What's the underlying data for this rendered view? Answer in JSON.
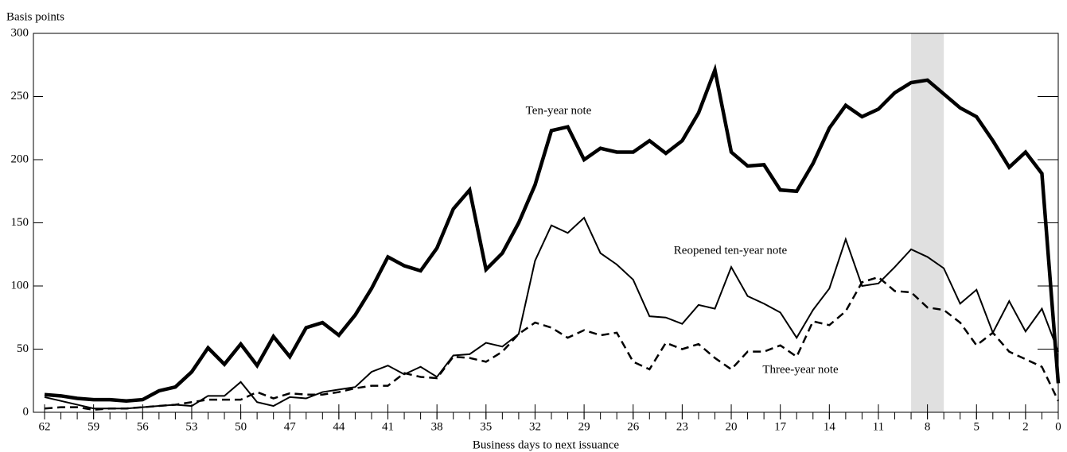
{
  "chart_data": {
    "type": "line",
    "ylabel": "Basis points",
    "xlabel": "Business days to next issuance",
    "x": [
      62,
      61,
      60,
      59,
      58,
      57,
      56,
      55,
      54,
      53,
      52,
      51,
      50,
      49,
      48,
      47,
      46,
      45,
      44,
      43,
      42,
      41,
      40,
      39,
      38,
      37,
      36,
      35,
      34,
      33,
      32,
      31,
      30,
      29,
      28,
      27,
      26,
      25,
      24,
      23,
      22,
      21,
      20,
      19,
      18,
      17,
      16,
      15,
      14,
      13,
      12,
      11,
      10,
      9,
      8,
      7,
      6,
      5,
      4,
      3,
      2,
      1,
      0
    ],
    "series": [
      {
        "name": "Ten-year note",
        "color": "#000000",
        "style": "thick",
        "values": [
          14,
          13,
          11,
          10,
          10,
          9,
          10,
          17,
          20,
          32,
          51,
          38,
          54,
          37,
          60,
          44,
          67,
          71,
          61,
          77,
          98,
          123,
          116,
          112,
          130,
          161,
          176,
          113,
          126,
          150,
          180,
          223,
          226,
          200,
          209,
          206,
          206,
          215,
          205,
          215,
          237,
          271,
          206,
          195,
          196,
          176,
          175,
          197,
          225,
          243,
          234,
          240,
          253,
          261,
          263,
          252,
          241,
          234,
          215,
          194,
          206,
          189,
          23
        ]
      },
      {
        "name": "Reopened ten-year note",
        "color": "#000000",
        "style": "thin",
        "values": [
          12,
          9,
          6,
          3,
          3,
          3,
          4,
          5,
          6,
          5,
          13,
          13,
          24,
          8,
          5,
          12,
          11,
          16,
          18,
          20,
          32,
          37,
          30,
          36,
          28,
          45,
          46,
          55,
          52,
          62,
          120,
          148,
          142,
          154,
          126,
          117,
          105,
          76,
          75,
          70,
          85,
          82,
          115,
          92,
          86,
          79,
          59,
          81,
          98,
          137,
          100,
          102,
          115,
          129,
          123,
          114,
          86,
          97,
          63,
          88,
          64,
          82,
          48
        ]
      },
      {
        "name": "Three-year note",
        "color": "#000000",
        "style": "dashed",
        "values": [
          3,
          4,
          4,
          2,
          3,
          3,
          4,
          5,
          6,
          8,
          10,
          10,
          10,
          16,
          11,
          15,
          14,
          14,
          16,
          19,
          21,
          21,
          31,
          28,
          27,
          44,
          43,
          40,
          48,
          62,
          71,
          67,
          59,
          65,
          61,
          63,
          40,
          34,
          55,
          50,
          54,
          43,
          34,
          48,
          48,
          53,
          44,
          72,
          69,
          80,
          103,
          107,
          96,
          95,
          83,
          81,
          71,
          53,
          63,
          48,
          42,
          36,
          9
        ]
      }
    ],
    "xlim": [
      62,
      0
    ],
    "xticks": [
      62,
      59,
      56,
      53,
      50,
      47,
      44,
      41,
      38,
      35,
      32,
      29,
      26,
      23,
      20,
      17,
      14,
      11,
      8,
      5,
      2,
      0
    ],
    "xticks_minor": [
      62,
      61,
      60,
      59,
      58,
      57,
      56,
      55,
      54,
      53,
      52,
      51,
      50,
      49,
      48,
      47,
      46,
      45,
      44,
      43,
      42,
      41,
      40,
      39,
      38,
      37,
      36,
      35,
      34,
      33,
      32,
      31,
      30,
      29,
      28,
      27,
      26,
      25,
      24,
      23,
      22,
      21,
      20,
      19,
      18,
      17,
      16,
      15,
      14,
      13,
      12,
      11,
      10,
      9,
      8,
      7,
      6,
      5,
      4,
      3,
      2,
      1,
      0
    ],
    "ylim": [
      0,
      300
    ],
    "yticks": [
      0,
      50,
      100,
      150,
      200,
      250,
      300
    ],
    "shaded_x": [
      9,
      7
    ],
    "shade_color": "#e0e0e0"
  }
}
